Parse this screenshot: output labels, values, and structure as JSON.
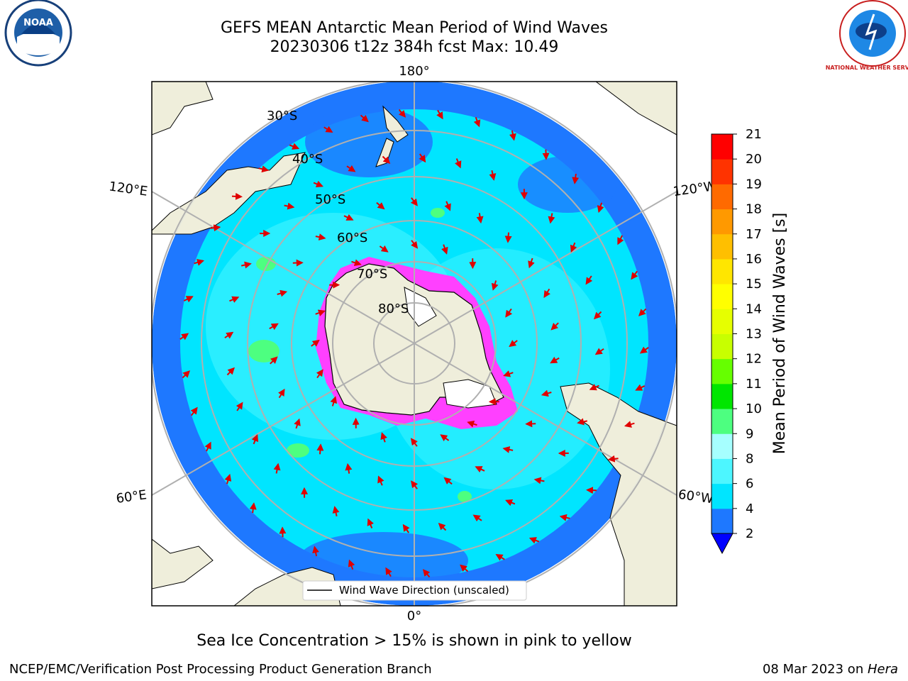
{
  "title_line1": "GEFS MEAN Antarctic Mean Period of Wind Waves",
  "title_line2": "20230306 t12z 384h fcst   Max: 10.49",
  "caption": "Sea Ice Concentration > 15% is shown in pink to yellow",
  "footer_left": "NCEP/EMC/Verification Post Processing Product Generation Branch",
  "footer_right_date": "08 Mar 2023 on ",
  "footer_right_host": "Hera",
  "logos": {
    "left": "NOAA",
    "right": "NATIONAL WEATHER SERVICE"
  },
  "map": {
    "projection": "south-polar-stereographic",
    "longitude_labels": [
      "180°",
      "120°E",
      "120°W",
      "60°E",
      "60°W",
      "0°"
    ],
    "latitude_labels": [
      "30°S",
      "40°S",
      "50°S",
      "60°S",
      "70°S",
      "80°S"
    ],
    "legend_label": "Wind Wave Direction (unscaled)",
    "colors": {
      "land": "#efeedb",
      "ocean_2_4": "#1e78ff",
      "ocean_4_6": "#00e5ff",
      "ice": "#ff40ff",
      "arrow": "#e00000"
    }
  },
  "colorbar": {
    "label": "Mean Period of Wind Waves [s]",
    "ticks": [
      "2",
      "4",
      "6",
      "8",
      "9",
      "10",
      "11",
      "12",
      "13",
      "14",
      "15",
      "16",
      "17",
      "18",
      "19",
      "20",
      "21"
    ],
    "colors": [
      "#1e78ff",
      "#00e5ff",
      "#4df6ff",
      "#a6ffff",
      "#4dff80",
      "#00e600",
      "#66ff00",
      "#c8ff00",
      "#e6ff00",
      "#ffff00",
      "#ffe600",
      "#ffbf00",
      "#ff9900",
      "#ff6a00",
      "#ff3300",
      "#ff0000"
    ],
    "under_color": "#0000ff"
  }
}
